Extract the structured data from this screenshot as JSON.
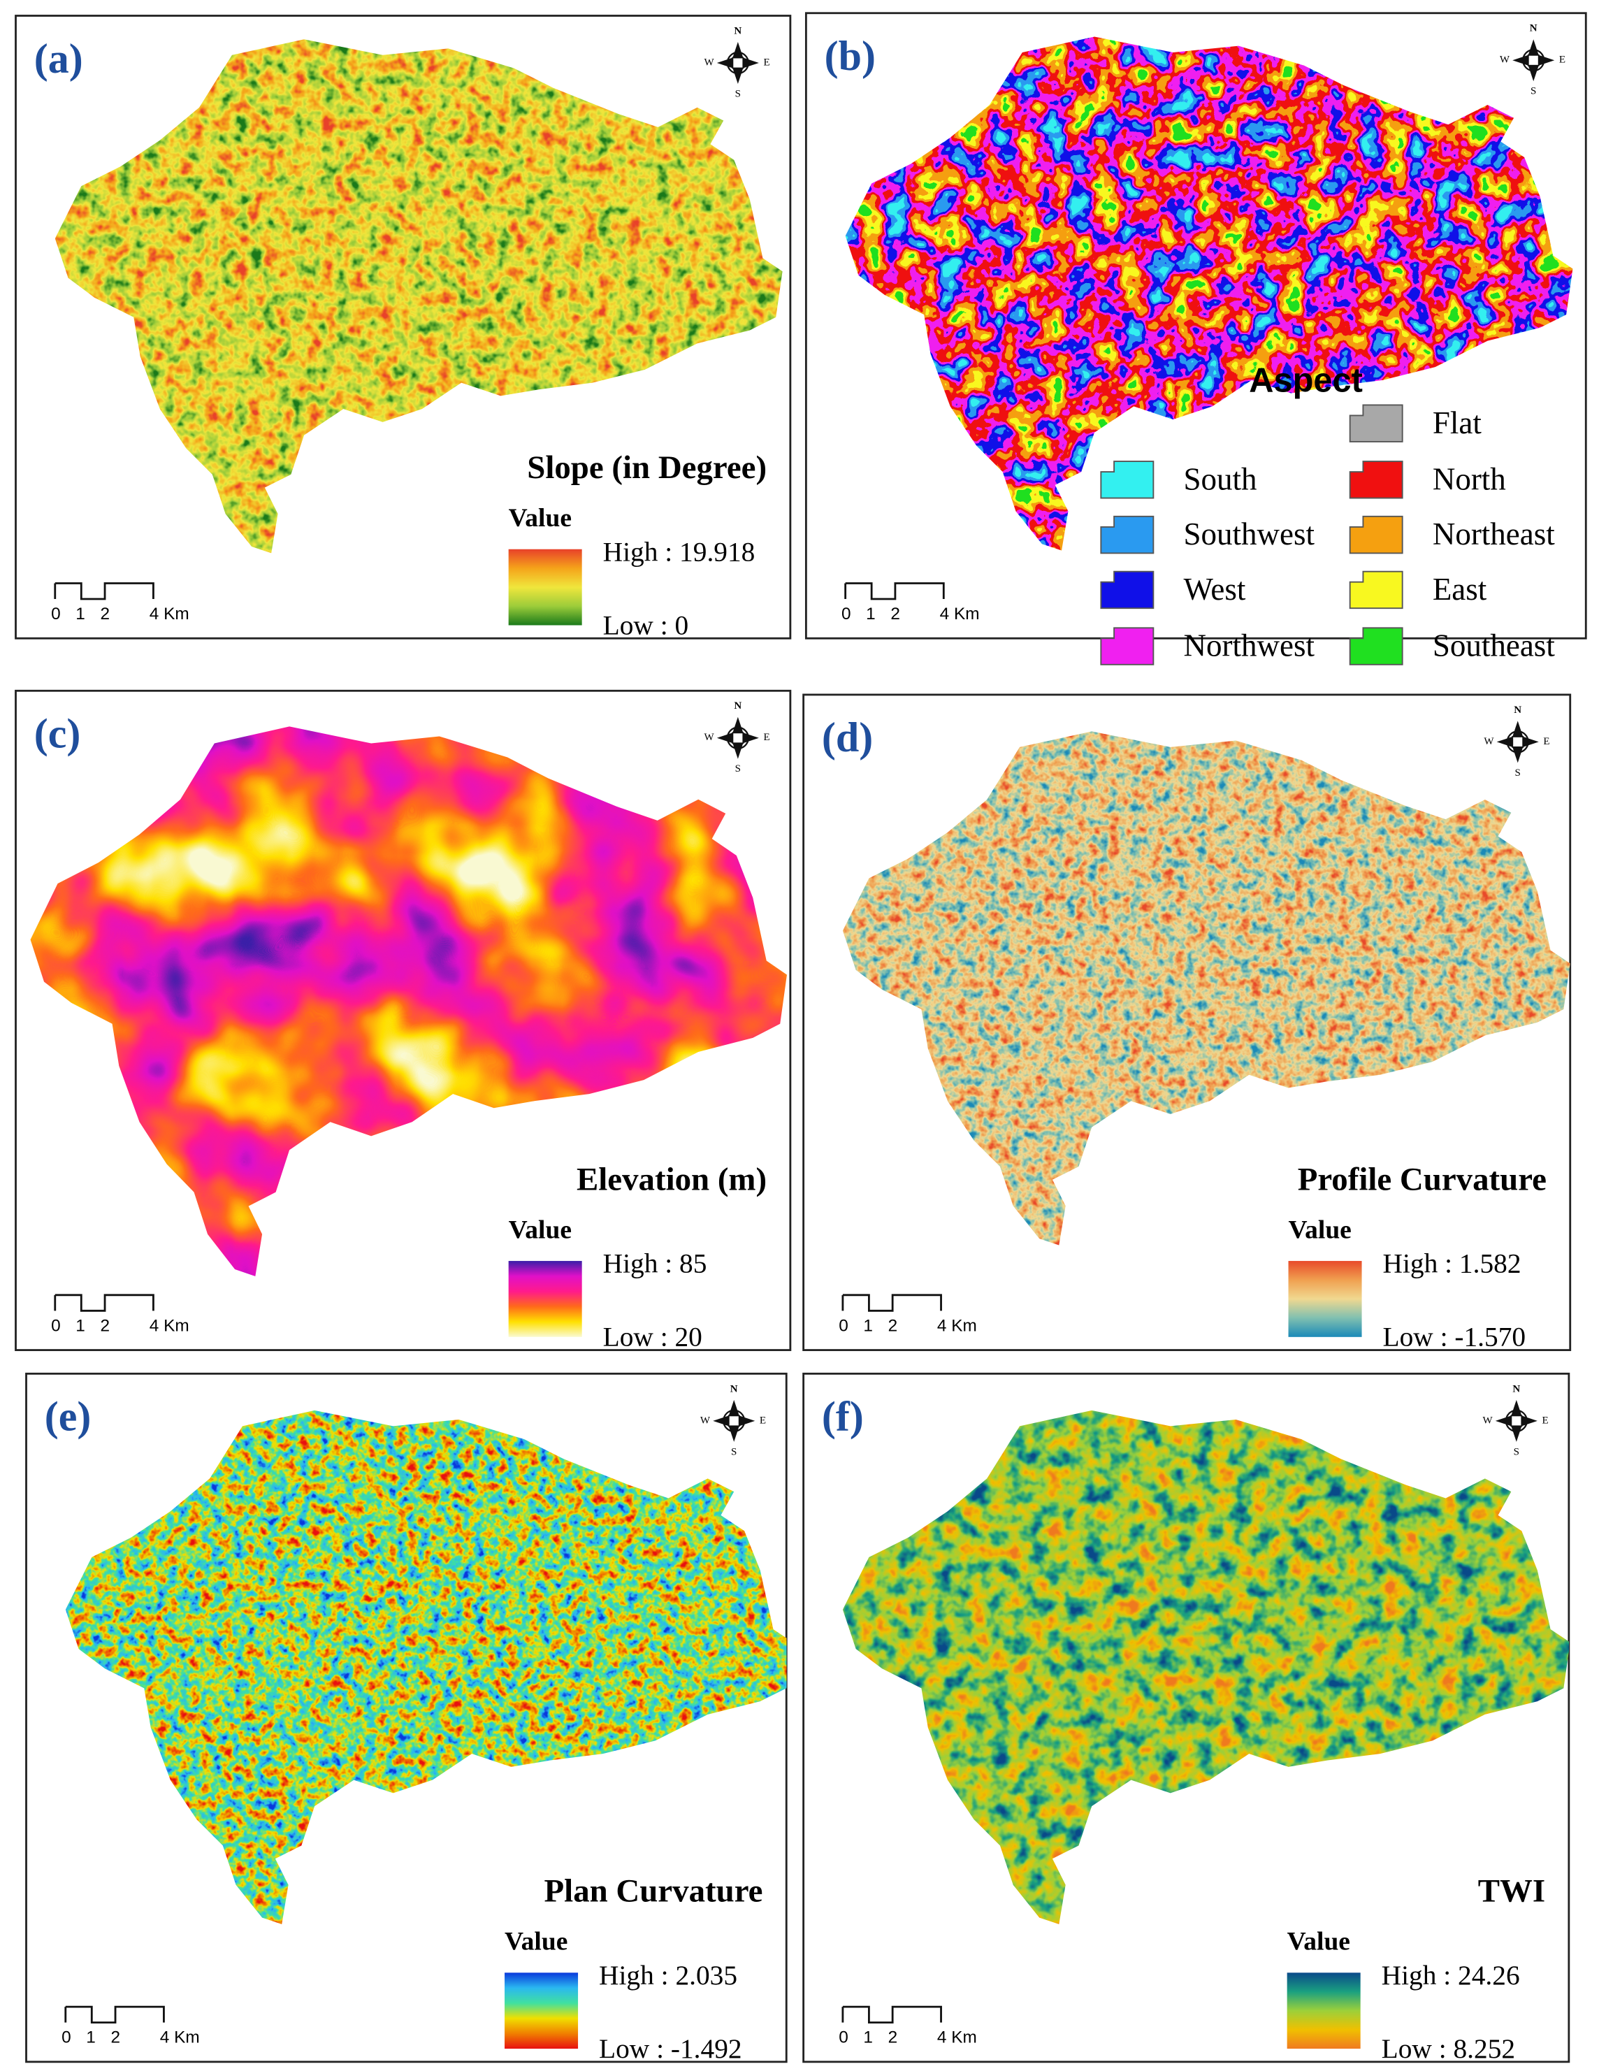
{
  "scale_bar": [
    "0",
    "1",
    "2",
    "4 Km"
  ],
  "compass": {
    "n": "N",
    "e": "E",
    "s": "S",
    "w": "W"
  },
  "panels": [
    {
      "label": "(a)",
      "title": "Slope (in Degree)",
      "legend_title": "Value",
      "high": "High : 19.918",
      "low": "Low : 0",
      "ramp": [
        "#e8412a",
        "#f5a31a",
        "#f0e63c",
        "#9ccc3a",
        "#1a7a1a"
      ]
    },
    {
      "label": "(b)",
      "legend_title": "Aspect",
      "classes": [
        {
          "name": "Flat",
          "color": "#a8a8a8"
        },
        {
          "name": "South",
          "color": "#33f0f0"
        },
        {
          "name": "Southwest",
          "color": "#2a9af0"
        },
        {
          "name": "West",
          "color": "#1010e8"
        },
        {
          "name": "Northwest",
          "color": "#f020f0"
        },
        {
          "name": "North",
          "color": "#f01010"
        },
        {
          "name": "Northeast",
          "color": "#f5a010"
        },
        {
          "name": "East",
          "color": "#f8f820"
        },
        {
          "name": "Southeast",
          "color": "#20e020"
        }
      ]
    },
    {
      "label": "(c)",
      "title": "Elevation (m)",
      "legend_title": "Value",
      "high": "High : 85",
      "low": "Low : 20",
      "ramp": [
        "#3a1fa8",
        "#e010c8",
        "#ff1a8c",
        "#ff6a1a",
        "#ffe000",
        "#fafad2"
      ]
    },
    {
      "label": "(d)",
      "title": "Profile Curvature",
      "legend_title": "Value",
      "high": "High : 1.582",
      "low": "Low : -1.570",
      "ramp": [
        "#e84a2a",
        "#f0a050",
        "#f0d890",
        "#80c0b0",
        "#1a8ab8"
      ]
    },
    {
      "label": "(e)",
      "title": "Plan Curvature",
      "legend_title": "Value",
      "high": "High : 2.035",
      "low": "Low : -1.492",
      "ramp": [
        "#0a3adc",
        "#2ab8f0",
        "#40e0a0",
        "#f0e000",
        "#f08000",
        "#e81010"
      ]
    },
    {
      "label": "(f)",
      "title": "TWI",
      "legend_title": "Value",
      "high": "High : 24.26",
      "low": "Low : 8.252",
      "ramp": [
        "#0a4a8a",
        "#1aa080",
        "#9cd03a",
        "#f0c000",
        "#f07a20"
      ]
    }
  ]
}
